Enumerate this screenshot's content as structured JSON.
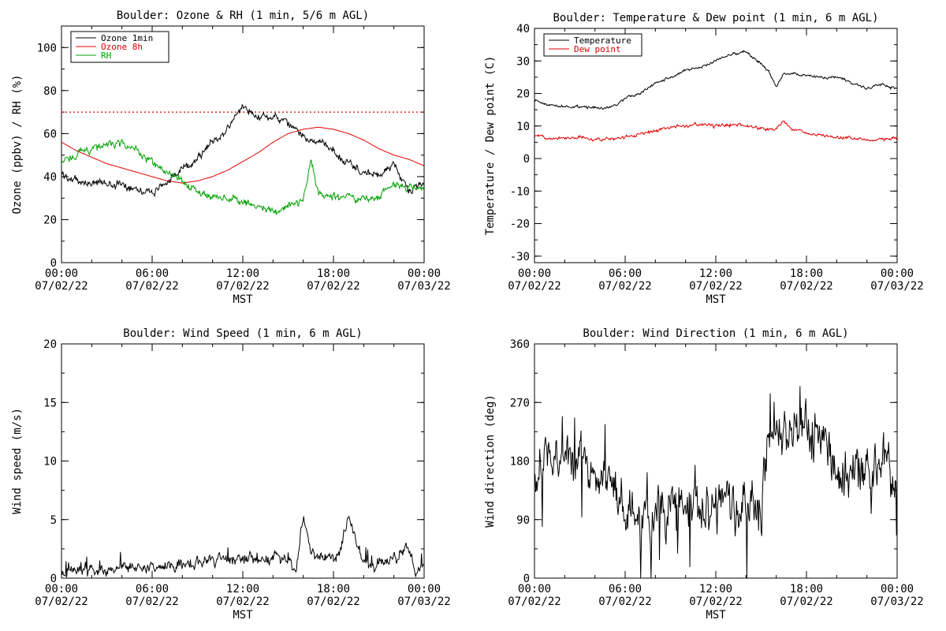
{
  "x_axis": {
    "tick_times": [
      "00:00",
      "06:00",
      "12:00",
      "18:00",
      "00:00"
    ],
    "tick_dates": [
      "07/02/22",
      "07/02/22",
      "07/02/22",
      "07/02/22",
      "07/03/22"
    ],
    "label": "MST"
  },
  "chart_data": [
    {
      "type": "line",
      "title": "Boulder: Ozone & RH (1 min, 5/6 m AGL)",
      "ylabel": "Ozone (ppbv) / RH (%)",
      "ylim": [
        0,
        110
      ],
      "yticks": [
        0,
        20,
        40,
        60,
        80,
        100
      ],
      "xlim": [
        "00:00",
        "24:00"
      ],
      "xlabel": "MST",
      "legend_position": "top-left",
      "series": [
        {
          "name": "Ozone 1min",
          "color": "#000000",
          "style": "noisy",
          "x": [
            "00:00",
            "01:00",
            "02:00",
            "03:00",
            "04:00",
            "05:00",
            "06:00",
            "07:00",
            "08:00",
            "09:00",
            "10:00",
            "11:00",
            "12:00",
            "13:00",
            "14:00",
            "15:00",
            "16:00",
            "17:00",
            "18:00",
            "19:00",
            "20:00",
            "21:00",
            "22:00",
            "23:00",
            "24:00"
          ],
          "values": [
            41,
            38,
            37,
            37,
            36,
            35,
            32,
            38,
            43,
            49,
            56,
            62,
            73,
            68,
            68,
            64,
            59,
            56,
            52,
            46,
            42,
            40,
            46,
            33,
            36
          ]
        },
        {
          "name": "Ozone 8h",
          "color": "#e00000",
          "style": "smooth",
          "x": [
            "00:00",
            "01:00",
            "02:00",
            "03:00",
            "04:00",
            "05:00",
            "06:00",
            "07:00",
            "08:00",
            "09:00",
            "10:00",
            "11:00",
            "12:00",
            "13:00",
            "14:00",
            "15:00",
            "16:00",
            "17:00",
            "18:00",
            "19:00",
            "20:00",
            "21:00",
            "22:00",
            "23:00",
            "24:00"
          ],
          "values": [
            56,
            52,
            49,
            46,
            44,
            42,
            40,
            38,
            37,
            38,
            40,
            43,
            47,
            51,
            56,
            60,
            62,
            63,
            62,
            60,
            57,
            53,
            50,
            48,
            45
          ]
        },
        {
          "name": "RH",
          "color": "#00a000",
          "style": "noisy",
          "x": [
            "00:00",
            "01:00",
            "02:00",
            "03:00",
            "04:00",
            "05:00",
            "06:00",
            "07:00",
            "08:00",
            "09:00",
            "10:00",
            "11:00",
            "12:00",
            "13:00",
            "14:00",
            "15:00",
            "16:00",
            "16:30",
            "17:00",
            "18:00",
            "19:00",
            "20:00",
            "21:00",
            "22:00",
            "23:00",
            "24:00"
          ],
          "values": [
            46,
            51,
            53,
            55,
            55,
            52,
            46,
            41,
            38,
            33,
            31,
            30,
            29,
            26,
            24,
            26,
            29,
            47,
            33,
            31,
            30,
            30,
            31,
            36,
            35,
            36
          ]
        }
      ],
      "reference_lines": [
        {
          "y": 70,
          "color": "#e00000",
          "style": "dotted"
        }
      ]
    },
    {
      "type": "line",
      "title": "Boulder: Temperature & Dew point (1 min, 6 m AGL)",
      "ylabel": "Temperature / Dew point (C)",
      "ylim": [
        -32,
        40
      ],
      "yticks": [
        -30,
        -20,
        -10,
        0,
        10,
        20,
        30,
        40
      ],
      "xlim": [
        "00:00",
        "24:00"
      ],
      "xlabel": "MST",
      "legend_position": "top-left",
      "series": [
        {
          "name": "Temperature",
          "color": "#000000",
          "style": "slightly-noisy",
          "x": [
            "00:00",
            "01:00",
            "02:00",
            "03:00",
            "04:00",
            "05:00",
            "06:00",
            "07:00",
            "08:00",
            "09:00",
            "10:00",
            "11:00",
            "12:00",
            "13:00",
            "14:00",
            "15:00",
            "15:30",
            "16:00",
            "16:30",
            "17:00",
            "18:00",
            "19:00",
            "20:00",
            "21:00",
            "22:00",
            "23:00",
            "24:00"
          ],
          "values": [
            18,
            16.5,
            16,
            16,
            15.5,
            15.5,
            18.5,
            20,
            23,
            25,
            27,
            28,
            30,
            32,
            33,
            29,
            27,
            22,
            26,
            26,
            25.5,
            25,
            25,
            23,
            21.5,
            23,
            21.5
          ]
        },
        {
          "name": "Dew point",
          "color": "#e00000",
          "style": "noisy",
          "x": [
            "00:00",
            "01:00",
            "02:00",
            "03:00",
            "04:00",
            "05:00",
            "06:00",
            "07:00",
            "08:00",
            "09:00",
            "10:00",
            "11:00",
            "12:00",
            "13:00",
            "14:00",
            "15:00",
            "16:00",
            "16:30",
            "17:00",
            "18:00",
            "19:00",
            "20:00",
            "21:00",
            "22:00",
            "23:00",
            "24:00"
          ],
          "values": [
            7,
            6.5,
            6.5,
            6.5,
            6,
            6,
            6.5,
            7.5,
            8.5,
            9.5,
            10,
            10.5,
            10,
            10.5,
            10,
            9,
            9,
            11.5,
            9,
            8,
            7,
            6.5,
            6.5,
            6,
            6,
            6
          ]
        }
      ]
    },
    {
      "type": "line",
      "title": "Boulder: Wind Speed (1 min, 6 m AGL)",
      "ylabel": "Wind speed (m/s)",
      "ylim": [
        0,
        20
      ],
      "yticks": [
        0,
        5,
        10,
        15,
        20
      ],
      "xlim": [
        "00:00",
        "24:00"
      ],
      "xlabel": "MST",
      "series": [
        {
          "color": "#000000",
          "style": "spiky",
          "x": [
            "00:00",
            "01:00",
            "02:00",
            "03:00",
            "04:00",
            "05:00",
            "06:00",
            "07:00",
            "08:00",
            "09:00",
            "10:00",
            "11:00",
            "12:00",
            "13:00",
            "14:00",
            "15:00",
            "15:30",
            "16:00",
            "16:30",
            "17:00",
            "18:00",
            "18:30",
            "19:00",
            "20:00",
            "21:00",
            "22:00",
            "23:00",
            "23:30",
            "24:00"
          ],
          "values": [
            0.6,
            0.7,
            0.7,
            0.8,
            0.9,
            0.8,
            1.0,
            1.2,
            1.3,
            1.4,
            1.6,
            1.7,
            1.8,
            1.8,
            1.7,
            1.6,
            0.5,
            5.2,
            2.0,
            1.8,
            1.6,
            3.0,
            5.5,
            1.0,
            1.2,
            1.4,
            2.5,
            0.4,
            1.2
          ]
        }
      ]
    },
    {
      "type": "line",
      "title": "Boulder: Wind Direction (1 min, 6 m AGL)",
      "ylabel": "Wind direction (deg)",
      "ylim": [
        0,
        360
      ],
      "yticks": [
        0,
        90,
        180,
        270,
        360
      ],
      "xlim": [
        "00:00",
        "24:00"
      ],
      "xlabel": "MST",
      "series": [
        {
          "color": "#000000",
          "style": "very-spiky",
          "x": [
            "00:00",
            "01:00",
            "02:00",
            "03:00",
            "04:00",
            "05:00",
            "06:00",
            "07:00",
            "08:00",
            "09:00",
            "10:00",
            "11:00",
            "12:00",
            "13:00",
            "14:00",
            "15:00",
            "15:30",
            "16:00",
            "17:00",
            "18:00",
            "19:00",
            "20:00",
            "21:00",
            "22:00",
            "23:00",
            "24:00"
          ],
          "values": [
            150,
            190,
            180,
            175,
            170,
            160,
            110,
            80,
            95,
            110,
            120,
            115,
            110,
            105,
            110,
            100,
            225,
            215,
            215,
            225,
            230,
            170,
            160,
            165,
            180,
            140
          ]
        }
      ]
    }
  ]
}
